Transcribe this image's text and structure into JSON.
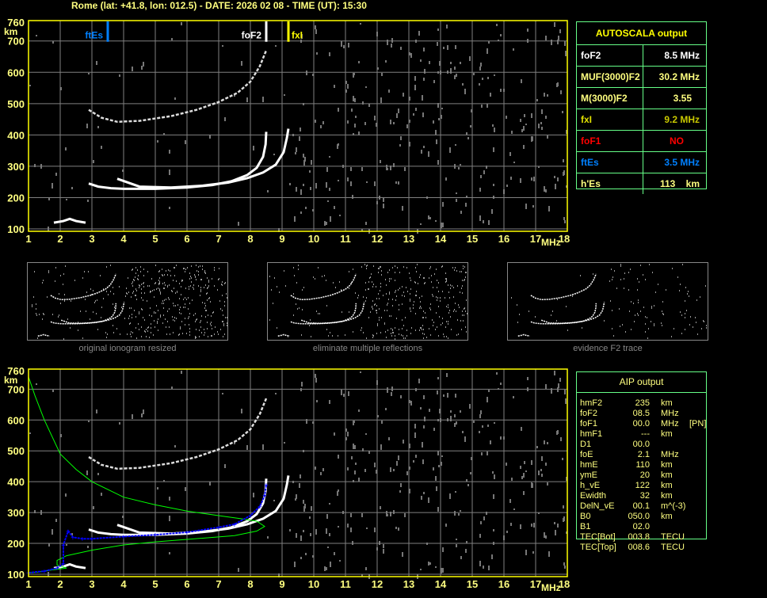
{
  "header": {
    "title": "Rome (lat: +41.8, lon: 012.5) - DATE: 2026 02 08 - TIME (UT): 15:30"
  },
  "colors": {
    "axis": "#ffff00",
    "grid": "#808080",
    "trace": "#ffffff",
    "ftEs": "#0080ff",
    "foF2": "#ffffff",
    "fxI": "#ffff00",
    "profile": "#00ff00",
    "aip_trace": "#0000ff",
    "panel_border": "#66ff88"
  },
  "chart_data": [
    {
      "type": "scatter",
      "title": "",
      "xlabel": "MHz",
      "ylabel": "km",
      "xlim": [
        1,
        18
      ],
      "ylim": [
        100,
        760
      ],
      "xticks": [
        "1",
        "2",
        "3",
        "4",
        "5",
        "6",
        "7",
        "8",
        "9",
        "10",
        "11",
        "12",
        "13",
        "14",
        "15",
        "16",
        "17",
        "18"
      ],
      "yticks": [
        "100",
        "200",
        "300",
        "400",
        "500",
        "600",
        "700",
        "760"
      ],
      "grid": true,
      "markers": [
        {
          "label": "ftEs",
          "freq": 3.5,
          "color": "#0080ff"
        },
        {
          "label": "foF2",
          "freq": 8.5,
          "color": "#ffffff"
        },
        {
          "label": "fxI",
          "freq": 9.2,
          "color": "#ffff00"
        }
      ],
      "series": [
        {
          "kind": "F2-o-trace",
          "color": "#ffffff",
          "points": [
            [
              2.9,
              245
            ],
            [
              3.2,
              235
            ],
            [
              3.6,
              230
            ],
            [
              4,
              228
            ],
            [
              5,
              228
            ],
            [
              6,
              232
            ],
            [
              6.8,
              240
            ],
            [
              7.4,
              252
            ],
            [
              7.9,
              272
            ],
            [
              8.2,
              295
            ],
            [
              8.4,
              330
            ],
            [
              8.48,
              370
            ],
            [
              8.5,
              410
            ]
          ]
        },
        {
          "kind": "F2-x-trace",
          "color": "#ffffff",
          "points": [
            [
              3.8,
              260
            ],
            [
              4.5,
              235
            ],
            [
              5.5,
              232
            ],
            [
              6.5,
              238
            ],
            [
              7.3,
              248
            ],
            [
              7.9,
              262
            ],
            [
              8.4,
              280
            ],
            [
              8.8,
              305
            ],
            [
              9.05,
              345
            ],
            [
              9.15,
              390
            ],
            [
              9.2,
              420
            ]
          ]
        },
        {
          "kind": "second-hop",
          "color": "#dddddd",
          "points": [
            [
              2.9,
              480
            ],
            [
              3.3,
              455
            ],
            [
              3.8,
              442
            ],
            [
              4.5,
              445
            ],
            [
              5.5,
              460
            ],
            [
              6.3,
              480
            ],
            [
              7,
              505
            ],
            [
              7.6,
              535
            ],
            [
              8,
              570
            ],
            [
              8.3,
              620
            ],
            [
              8.5,
              670
            ]
          ]
        },
        {
          "kind": "Es-trace",
          "color": "#ffffff",
          "points": [
            [
              1.8,
              120
            ],
            [
              2.1,
              125
            ],
            [
              2.3,
              132
            ],
            [
              2.5,
              125
            ],
            [
              2.8,
              120
            ]
          ]
        }
      ]
    },
    {
      "type": "scatter",
      "title": "",
      "xlabel": "MHz",
      "ylabel": "km",
      "xlim": [
        1,
        18
      ],
      "ylim": [
        100,
        760
      ],
      "xticks": [
        "1",
        "2",
        "3",
        "4",
        "5",
        "6",
        "7",
        "8",
        "9",
        "10",
        "11",
        "12",
        "13",
        "14",
        "15",
        "16",
        "17",
        "18"
      ],
      "yticks": [
        "100",
        "200",
        "300",
        "400",
        "500",
        "600",
        "700",
        "760"
      ],
      "grid": true,
      "series": [
        {
          "kind": "F2-o-trace",
          "color": "#ffffff",
          "points": [
            [
              2.9,
              245
            ],
            [
              3.2,
              235
            ],
            [
              3.6,
              230
            ],
            [
              4,
              228
            ],
            [
              5,
              228
            ],
            [
              6,
              232
            ],
            [
              6.8,
              240
            ],
            [
              7.4,
              252
            ],
            [
              7.9,
              272
            ],
            [
              8.2,
              295
            ],
            [
              8.4,
              330
            ],
            [
              8.48,
              370
            ],
            [
              8.5,
              410
            ]
          ]
        },
        {
          "kind": "F2-x-trace",
          "color": "#ffffff",
          "points": [
            [
              3.8,
              260
            ],
            [
              4.5,
              235
            ],
            [
              5.5,
              232
            ],
            [
              6.5,
              238
            ],
            [
              7.3,
              248
            ],
            [
              7.9,
              262
            ],
            [
              8.4,
              280
            ],
            [
              8.8,
              305
            ],
            [
              9.05,
              345
            ],
            [
              9.15,
              390
            ],
            [
              9.2,
              420
            ]
          ]
        },
        {
          "kind": "second-hop",
          "color": "#dddddd",
          "points": [
            [
              2.9,
              480
            ],
            [
              3.3,
              455
            ],
            [
              3.8,
              442
            ],
            [
              4.5,
              445
            ],
            [
              5.5,
              460
            ],
            [
              6.3,
              480
            ],
            [
              7,
              505
            ],
            [
              7.6,
              535
            ],
            [
              8,
              570
            ],
            [
              8.3,
              620
            ],
            [
              8.5,
              670
            ]
          ]
        },
        {
          "kind": "Es-trace",
          "color": "#ffffff",
          "points": [
            [
              1.8,
              120
            ],
            [
              2.1,
              125
            ],
            [
              2.3,
              132
            ],
            [
              2.5,
              125
            ],
            [
              2.8,
              120
            ]
          ]
        },
        {
          "kind": "profile",
          "color": "#00ff00",
          "points": [
            [
              1,
              740
            ],
            [
              1.2,
              680
            ],
            [
              1.5,
              600
            ],
            [
              2,
              490
            ],
            [
              2.5,
              440
            ],
            [
              3,
              400
            ],
            [
              4,
              350
            ],
            [
              5,
              325
            ],
            [
              6,
              305
            ],
            [
              7,
              290
            ],
            [
              7.7,
              280
            ],
            [
              8.2,
              272
            ],
            [
              8.45,
              255
            ],
            [
              8.2,
              240
            ],
            [
              7.5,
              225
            ],
            [
              6,
              213
            ],
            [
              5,
              205
            ],
            [
              4,
              195
            ],
            [
              3,
              178
            ],
            [
              2.2,
              160
            ],
            [
              1.9,
              145
            ],
            [
              1.9,
              130
            ],
            [
              2.2,
              120
            ],
            [
              1.8,
              115
            ],
            [
              1.3,
              107
            ],
            [
              1,
              105
            ]
          ]
        },
        {
          "kind": "aip-trace",
          "color": "#0000ff",
          "points": [
            [
              1,
              105
            ],
            [
              1.5,
              110
            ],
            [
              1.9,
              120
            ],
            [
              2.1,
              135
            ],
            [
              2.1,
              195
            ],
            [
              2.25,
              240
            ],
            [
              2.4,
              220
            ],
            [
              2.7,
              215
            ],
            [
              3,
              215
            ],
            [
              4,
              222
            ],
            [
              5,
              228
            ],
            [
              6,
              236
            ],
            [
              7,
              252
            ],
            [
              7.5,
              262
            ],
            [
              8,
              290
            ],
            [
              8.3,
              320
            ],
            [
              8.45,
              355
            ],
            [
              8.5,
              390
            ]
          ]
        }
      ]
    }
  ],
  "autoscala": {
    "title": "AUTOSCALA output",
    "rows": [
      {
        "label": "foF2",
        "value": "8.5 MHz",
        "label_color": "#ffffff",
        "value_color": "#ffffff"
      },
      {
        "label": "MUF(3000)F2",
        "value": "30.2 MHz",
        "label_color": "#ffff80",
        "value_color": "#ffff80"
      },
      {
        "label": "M(3000)F2",
        "value": "3.55   ",
        "label_color": "#ffff80",
        "value_color": "#ffff80"
      },
      {
        "label": "fxI",
        "value": "9.2 MHz",
        "label_color": "#e0e000",
        "value_color": "#c8c800"
      },
      {
        "label": "foF1",
        "value": "NO      ",
        "label_color": "#ff0000",
        "value_color": "#ff0000"
      },
      {
        "label": "ftEs",
        "value": "3.5 MHz",
        "label_color": "#0080ff",
        "value_color": "#0080ff"
      },
      {
        "label": "h'Es",
        "value": "113    km",
        "label_color": "#ffff80",
        "value_color": "#ffff80"
      }
    ]
  },
  "aip": {
    "title": "AIP output",
    "rows": [
      {
        "param": "hmF2",
        "value": "235",
        "unit": "km",
        "extra": ""
      },
      {
        "param": "foF2",
        "value": "08.5",
        "unit": "MHz",
        "extra": ""
      },
      {
        "param": "foF1",
        "value": "00.0",
        "unit": "MHz",
        "extra": "[PN]"
      },
      {
        "param": "hmF1",
        "value": "---",
        "unit": "km",
        "extra": ""
      },
      {
        "param": "D1",
        "value": "00.0",
        "unit": "",
        "extra": ""
      },
      {
        "param": "foE",
        "value": "2.1",
        "unit": "MHz",
        "extra": ""
      },
      {
        "param": "hmE",
        "value": "110",
        "unit": "km",
        "extra": ""
      },
      {
        "param": "ymE",
        "value": "20",
        "unit": "km",
        "extra": ""
      },
      {
        "param": "h_vE",
        "value": "122",
        "unit": "km",
        "extra": ""
      },
      {
        "param": "Ewidth",
        "value": "32",
        "unit": "km",
        "extra": ""
      },
      {
        "param": "DelN_vE",
        "value": "00.1",
        "unit": "m^(-3)",
        "extra": ""
      },
      {
        "param": "B0",
        "value": "050.0",
        "unit": "km",
        "extra": ""
      },
      {
        "param": "B1",
        "value": "02.0",
        "unit": "",
        "extra": ""
      },
      {
        "param": "TEC[Bot]",
        "value": "003.8",
        "unit": "TECU",
        "extra": ""
      },
      {
        "param": "TEC[Top]",
        "value": "008.6",
        "unit": "TECU",
        "extra": ""
      }
    ]
  },
  "thumbnails": [
    {
      "label": "original ionogram resized"
    },
    {
      "label": "eliminate multiple reflections"
    },
    {
      "label": "evidence F2 trace"
    }
  ]
}
